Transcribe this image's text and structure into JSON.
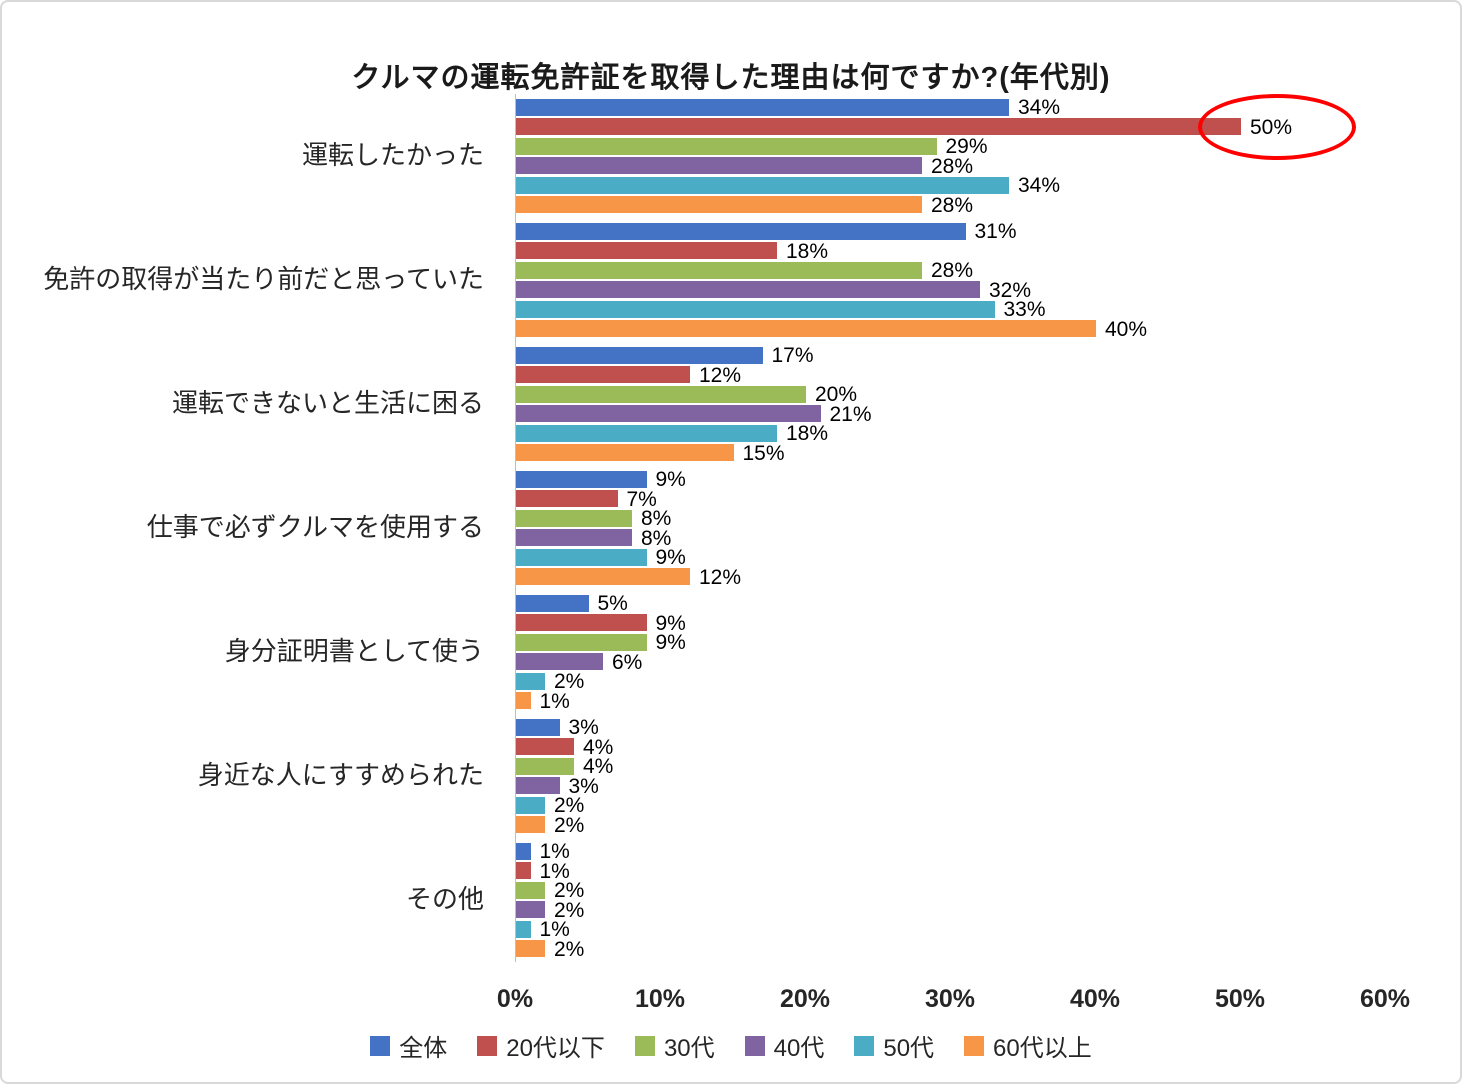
{
  "chart_data": {
    "type": "bar",
    "orientation": "horizontal",
    "title": "クルマの運転免許証を取得した理由は何ですか?(年代別)",
    "categories": [
      "運転したかった",
      "免許の取得が当たり前だと思っていた",
      "運転できないと生活に困る",
      "仕事で必ずクルマを使用する",
      "身分証明書として使う",
      "身近な人にすすめられた",
      "その他"
    ],
    "series": [
      {
        "name": "全体",
        "color": "#4472C4",
        "values": [
          34,
          31,
          17,
          9,
          5,
          3,
          1
        ]
      },
      {
        "name": "20代以下",
        "color": "#C0504D",
        "values": [
          50,
          18,
          12,
          7,
          9,
          4,
          1
        ]
      },
      {
        "name": "30代",
        "color": "#9BBB59",
        "values": [
          29,
          28,
          20,
          8,
          9,
          4,
          2
        ]
      },
      {
        "name": "40代",
        "color": "#8064A2",
        "values": [
          28,
          32,
          21,
          8,
          6,
          3,
          2
        ]
      },
      {
        "name": "50代",
        "color": "#4BACC6",
        "values": [
          34,
          33,
          18,
          9,
          2,
          2,
          1
        ]
      },
      {
        "name": "60代以上",
        "color": "#F79646",
        "values": [
          28,
          40,
          15,
          12,
          1,
          2,
          2
        ]
      }
    ],
    "value_suffix": "%",
    "xlim": [
      0,
      60
    ],
    "x_ticks": [
      0,
      10,
      20,
      30,
      40,
      50,
      60
    ],
    "x_tick_labels": [
      "0%",
      "10%",
      "20%",
      "30%",
      "40%",
      "50%",
      "60%"
    ],
    "grid": false,
    "legend_position": "bottom",
    "annotation": {
      "shape": "ellipse",
      "color": "#FF0000",
      "series_index": 1,
      "category_index": 0,
      "label": "50%"
    }
  }
}
